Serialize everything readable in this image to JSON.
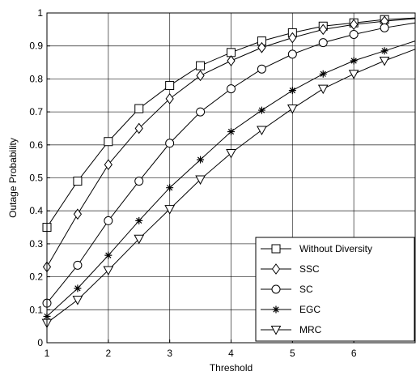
{
  "chart_data": {
    "type": "line",
    "xlabel": "Threshold",
    "ylabel": "Outage Probability",
    "xlim": [
      1,
      7
    ],
    "ylim": [
      0,
      1
    ],
    "xticks": [
      1,
      2,
      3,
      4,
      5,
      6
    ],
    "yticks": [
      0,
      0.1,
      0.2,
      0.3,
      0.4,
      0.5,
      0.6,
      0.7,
      0.8,
      0.9,
      1
    ],
    "grid": true,
    "legend_position": "bottom-right",
    "x": [
      1,
      1.5,
      2,
      2.5,
      3,
      3.5,
      4,
      4.5,
      5,
      5.5,
      6,
      6.5
    ],
    "series": [
      {
        "name": "Without Diversity",
        "marker": "square",
        "values": [
          0.35,
          0.49,
          0.61,
          0.71,
          0.78,
          0.84,
          0.88,
          0.915,
          0.94,
          0.96,
          0.97,
          0.98
        ],
        "end_value": 0.985
      },
      {
        "name": "SSC",
        "marker": "diamond",
        "values": [
          0.23,
          0.39,
          0.54,
          0.65,
          0.74,
          0.81,
          0.855,
          0.895,
          0.925,
          0.95,
          0.965,
          0.975
        ],
        "end_value": 0.983
      },
      {
        "name": "SC",
        "marker": "circle",
        "values": [
          0.12,
          0.235,
          0.37,
          0.49,
          0.605,
          0.7,
          0.77,
          0.83,
          0.875,
          0.91,
          0.935,
          0.955
        ],
        "end_value": 0.97
      },
      {
        "name": "EGC",
        "marker": "asterisk",
        "values": [
          0.08,
          0.165,
          0.265,
          0.37,
          0.47,
          0.555,
          0.64,
          0.705,
          0.765,
          0.815,
          0.855,
          0.885
        ],
        "end_value": 0.915
      },
      {
        "name": "MRC",
        "marker": "triangle-down",
        "values": [
          0.06,
          0.13,
          0.22,
          0.315,
          0.405,
          0.495,
          0.575,
          0.645,
          0.71,
          0.77,
          0.815,
          0.855
        ],
        "end_value": 0.89
      }
    ]
  }
}
